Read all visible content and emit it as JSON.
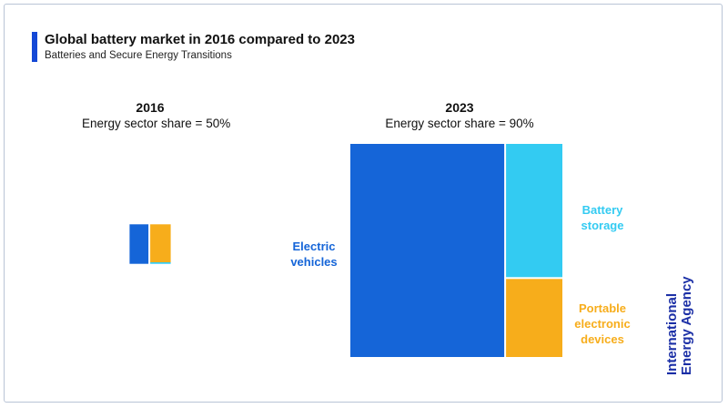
{
  "chart_data": {
    "type": "treemap",
    "title": "Global battery market in 2016 compared to 2023",
    "subtitle": "Batteries and Secure Energy Transitions",
    "source": "International Energy Agency",
    "colors": {
      "ev": "#1565d8",
      "storage": "#33cbf2",
      "portable": "#f7ad1b",
      "title_bar": "#1448d6",
      "brand": "#1b2fa6"
    },
    "categories": [
      "Electric vehicles",
      "Battery storage",
      "Portable electronic devices"
    ],
    "category_labels": [
      [
        "Electric",
        "vehicles"
      ],
      [
        "Battery",
        "storage"
      ],
      [
        "Portable",
        "electronic",
        "devices"
      ]
    ],
    "panels": [
      {
        "year": "2016",
        "share_label": "Energy sector share = 50%",
        "relative_size": 0.036,
        "values": [
          48,
          2,
          50
        ]
      },
      {
        "year": "2023",
        "share_label": "Energy sector share = 90%",
        "relative_size": 1,
        "values": [
          73,
          17,
          10
        ]
      }
    ]
  }
}
